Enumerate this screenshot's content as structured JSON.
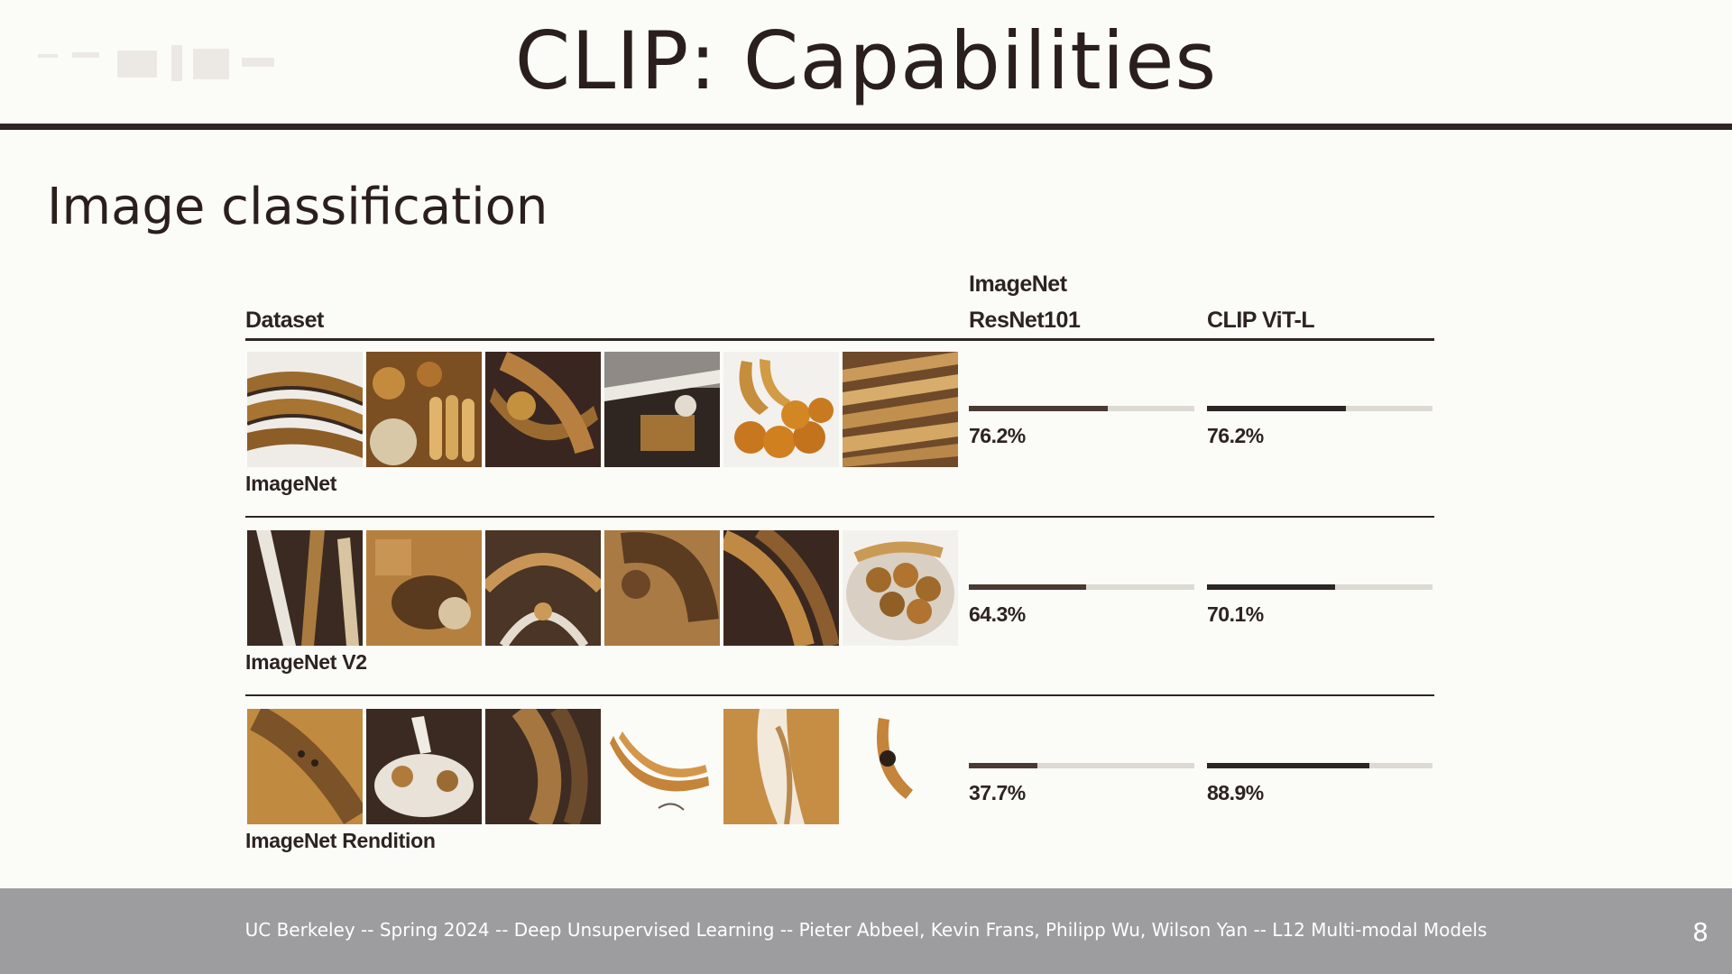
{
  "slide": {
    "title": "CLIP: Capabilities",
    "section_heading": "Image classification",
    "page_number": "8",
    "footer": "UC Berkeley -- Spring 2024 -- Deep Unsupervised Learning -- Pieter Abbeel, Kevin Frans, Philipp Wu, Wilson Yan  -- L12 Multi-modal Models"
  },
  "table": {
    "col_dataset": "Dataset",
    "col_resnet_line1": "ImageNet",
    "col_resnet_line2": "ResNet101",
    "col_clip": "CLIP ViT-L",
    "rows": [
      {
        "dataset": "ImageNet",
        "resnet": 76.2,
        "resnet_label": "76.2%",
        "clip": 76.2,
        "clip_label": "76.2%"
      },
      {
        "dataset": "ImageNet V2",
        "resnet": 64.3,
        "resnet_label": "64.3%",
        "clip": 70.1,
        "clip_label": "70.1%"
      },
      {
        "dataset": "ImageNet Rendition",
        "resnet": 37.7,
        "resnet_label": "37.7%",
        "clip": 88.9,
        "clip_label": "88.9%"
      }
    ]
  },
  "colors": {
    "resnet_bar": "#4a3a33",
    "clip_bar": "#2b2523",
    "track": "#ddd9d3",
    "rule": "#2f2624",
    "footer_bg": "#9d9c9f"
  },
  "icons": [
    "banana-photo-thumbnail",
    "fruit-photo-thumbnail",
    "banana-drawing-thumbnail"
  ]
}
